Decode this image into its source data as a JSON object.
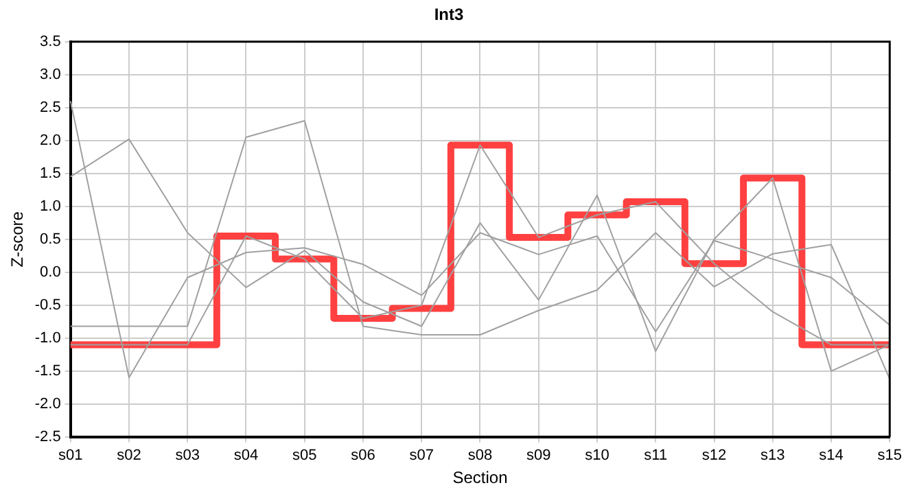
{
  "chart_data": {
    "type": "line",
    "title": "Int3",
    "xlabel": "Section",
    "ylabel": "Z-score",
    "categories": [
      "s01",
      "s02",
      "s03",
      "s04",
      "s05",
      "s06",
      "s07",
      "s08",
      "s09",
      "s10",
      "s11",
      "s12",
      "s13",
      "s14",
      "s15"
    ],
    "series": [
      {
        "color": "#a0a0a0",
        "values": [
          2.6,
          -1.6,
          -0.08,
          0.3,
          0.37,
          0.12,
          -0.35,
          0.6,
          0.27,
          0.55,
          -0.9,
          0.48,
          0.2,
          -0.08,
          -0.8
        ]
      },
      {
        "color": "#a0a0a0",
        "values": [
          1.45,
          2.02,
          0.6,
          -0.23,
          0.33,
          -0.45,
          -0.82,
          0.75,
          -0.42,
          1.17,
          -1.2,
          0.5,
          1.43,
          -1.5,
          -1.1
        ]
      },
      {
        "color": "#a0a0a0",
        "values": [
          -0.82,
          -0.82,
          -0.82,
          2.05,
          2.3,
          -0.82,
          -0.95,
          -0.95,
          -0.58,
          -0.27,
          0.6,
          -0.22,
          0.28,
          0.42,
          -1.62
        ]
      },
      {
        "color": "#a0a0a0",
        "values": [
          -1.1,
          -1.1,
          -1.1,
          0.55,
          0.2,
          -0.7,
          -0.5,
          1.93,
          0.53,
          0.87,
          1.07,
          0.13,
          -0.6,
          -1.1,
          -1.1
        ]
      },
      {
        "type": "step",
        "color": "#ff4040",
        "values": [
          -1.1,
          -1.1,
          -1.1,
          0.55,
          0.2,
          -0.7,
          -0.55,
          1.93,
          0.53,
          0.87,
          1.07,
          0.13,
          1.43,
          -1.1,
          -1.1
        ]
      }
    ],
    "ylim": [
      -2.5,
      3.5
    ],
    "yticks": [
      {
        "value": -2.5,
        "label": "-2.5"
      },
      {
        "value": -2,
        "label": "-2.0"
      },
      {
        "value": -1.5,
        "label": "-1.5"
      },
      {
        "value": -1,
        "label": "-1.0"
      },
      {
        "value": -0.5,
        "label": "-0.5"
      },
      {
        "value": 0,
        "label": "0.0"
      },
      {
        "value": 0.5,
        "label": "0.5"
      },
      {
        "value": 1,
        "label": "1.0"
      },
      {
        "value": 1.5,
        "label": "1.5"
      },
      {
        "value": 2,
        "label": "2.0"
      },
      {
        "value": 2.5,
        "label": "2.5"
      },
      {
        "value": 3,
        "label": "3.0"
      },
      {
        "value": 3.5,
        "label": "3.5"
      }
    ],
    "grid": true,
    "legend": false,
    "marker": "none"
  }
}
